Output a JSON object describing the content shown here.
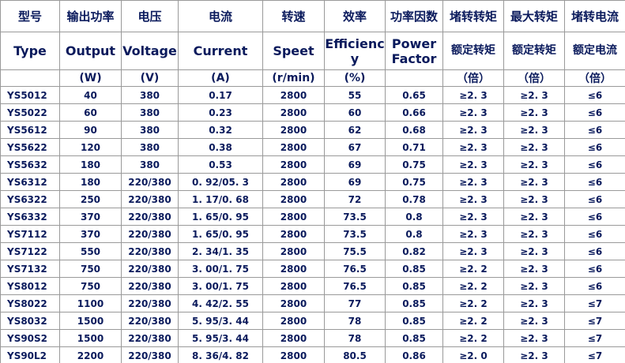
{
  "table": {
    "header_cn": [
      "型号",
      "输出功率",
      "电压",
      "电流",
      "转速",
      "效率",
      "功率因数",
      "堵转转矩",
      "最大转矩",
      "堵转电流"
    ],
    "header_en": [
      "Type",
      "Output",
      "Voltage",
      "Current",
      "Speet",
      "Efficiency",
      "Power Factor",
      "额定转矩",
      "额定转矩",
      "额定电流"
    ],
    "units": [
      null,
      "(W)",
      "(V)",
      "(A)",
      "(r/min)",
      "(%)",
      null,
      "（倍）",
      "（倍）",
      "（倍）"
    ],
    "rows": [
      [
        "YS5012",
        "40",
        "380",
        "0.17",
        "2800",
        "55",
        "0.65",
        "≥2. 3",
        "≥2. 3",
        "≤6"
      ],
      [
        "YS5022",
        "60",
        "380",
        "0.23",
        "2800",
        "60",
        "0.66",
        "≥2. 3",
        "≥2. 3",
        "≤6"
      ],
      [
        "YS5612",
        "90",
        "380",
        "0.32",
        "2800",
        "62",
        "0.68",
        "≥2. 3",
        "≥2. 3",
        "≤6"
      ],
      [
        "YS5622",
        "120",
        "380",
        "0.38",
        "2800",
        "67",
        "0.71",
        "≥2. 3",
        "≥2. 3",
        "≤6"
      ],
      [
        "YS5632",
        "180",
        "380",
        "0.53",
        "2800",
        "69",
        "0.75",
        "≥2. 3",
        "≥2. 3",
        "≤6"
      ],
      [
        "YS6312",
        "180",
        "220/380",
        "0. 92/05. 3",
        "2800",
        "69",
        "0.75",
        "≥2. 3",
        "≥2. 3",
        "≤6"
      ],
      [
        "YS6322",
        "250",
        "220/380",
        "1. 17/0. 68",
        "2800",
        "72",
        "0.78",
        "≥2. 3",
        "≥2. 3",
        "≤6"
      ],
      [
        "YS6332",
        "370",
        "220/380",
        "1. 65/0. 95",
        "2800",
        "73.5",
        "0.8",
        "≥2. 3",
        "≥2. 3",
        "≤6"
      ],
      [
        "YS7112",
        "370",
        "220/380",
        "1. 65/0. 95",
        "2800",
        "73.5",
        "0.8",
        "≥2. 3",
        "≥2. 3",
        "≤6"
      ],
      [
        "YS7122",
        "550",
        "220/380",
        "2. 34/1. 35",
        "2800",
        "75.5",
        "0.82",
        "≥2. 3",
        "≥2. 3",
        "≤6"
      ],
      [
        "YS7132",
        "750",
        "220/380",
        "3. 00/1. 75",
        "2800",
        "76.5",
        "0.85",
        "≥2. 2",
        "≥2. 3",
        "≤6"
      ],
      [
        "YS8012",
        "750",
        "220/380",
        "3. 00/1. 75",
        "2800",
        "76.5",
        "0.85",
        "≥2. 2",
        "≥2. 3",
        "≤6"
      ],
      [
        "YS8022",
        "1100",
        "220/380",
        "4. 42/2. 55",
        "2800",
        "77",
        "0.85",
        "≥2. 2",
        "≥2. 3",
        "≤7"
      ],
      [
        "YS8032",
        "1500",
        "220/380",
        "5. 95/3. 44",
        "2800",
        "78",
        "0.85",
        "≥2. 2",
        "≥2. 3",
        "≤7"
      ],
      [
        "YS90S2",
        "1500",
        "220/380",
        "5. 95/3. 44",
        "2800",
        "78",
        "0.85",
        "≥2. 2",
        "≥2. 3",
        "≤7"
      ],
      [
        "YS90L2",
        "2200",
        "220/380",
        "8. 36/4. 82",
        "2800",
        "80.5",
        "0.86",
        "≥2. 0",
        "≥2. 3",
        "≤7"
      ]
    ]
  }
}
